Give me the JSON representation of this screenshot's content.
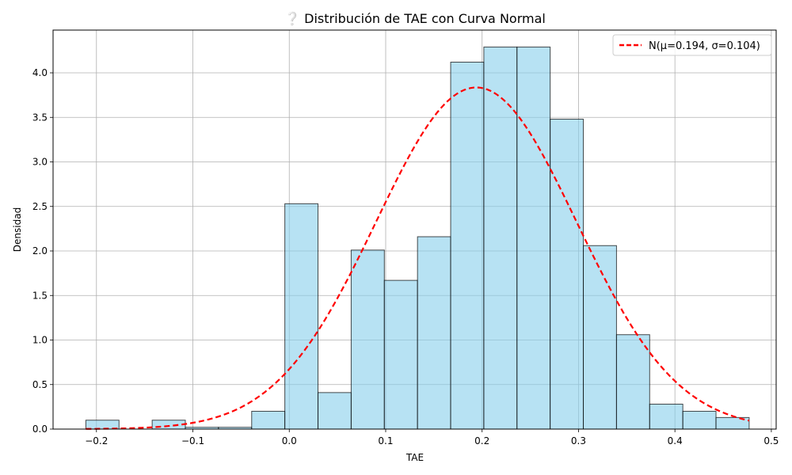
{
  "chart_data": {
    "type": "bar",
    "title": "❔ Distribución de TAE con Curva Normal",
    "xlabel": "TAE",
    "ylabel": "Densidad",
    "xlim": [
      -0.245,
      0.505
    ],
    "ylim": [
      0,
      4.48
    ],
    "xticks": [
      -0.2,
      -0.1,
      0.0,
      0.1,
      0.2,
      0.3,
      0.4,
      0.5
    ],
    "xtick_labels": [
      "−0.2",
      "−0.1",
      "0.0",
      "0.1",
      "0.2",
      "0.3",
      "0.4",
      "0.5"
    ],
    "yticks": [
      0.0,
      0.5,
      1.0,
      1.5,
      2.0,
      2.5,
      3.0,
      3.5,
      4.0
    ],
    "ytick_labels": [
      "0.0",
      "0.5",
      "1.0",
      "1.5",
      "2.0",
      "2.5",
      "3.0",
      "3.5",
      "4.0"
    ],
    "grid": true,
    "legend_position": "top-right",
    "histogram": {
      "bin_edges": [
        -0.211,
        -0.1766,
        -0.1422,
        -0.1078,
        -0.0734,
        -0.039,
        -0.0046,
        0.0298,
        0.0642,
        0.0986,
        0.133,
        0.1674,
        0.2018,
        0.2362,
        0.2706,
        0.305,
        0.3394,
        0.3738,
        0.4082,
        0.4426,
        0.477
      ],
      "densities": [
        0.1,
        0.0,
        0.1,
        0.02,
        0.02,
        0.2,
        2.53,
        0.41,
        2.01,
        1.67,
        2.16,
        4.12,
        4.29,
        4.29,
        3.48,
        2.06,
        1.06,
        0.28,
        0.2,
        0.13
      ],
      "fill_color": "#87CEEB",
      "edge_color": "#000000"
    },
    "series": [
      {
        "name": "N(μ=0.194, σ=0.104)",
        "type": "normal_pdf",
        "mu": 0.194,
        "sigma": 0.104,
        "x_range": [
          -0.211,
          0.477
        ],
        "color": "#FF0000",
        "linestyle": "dashed"
      }
    ]
  }
}
